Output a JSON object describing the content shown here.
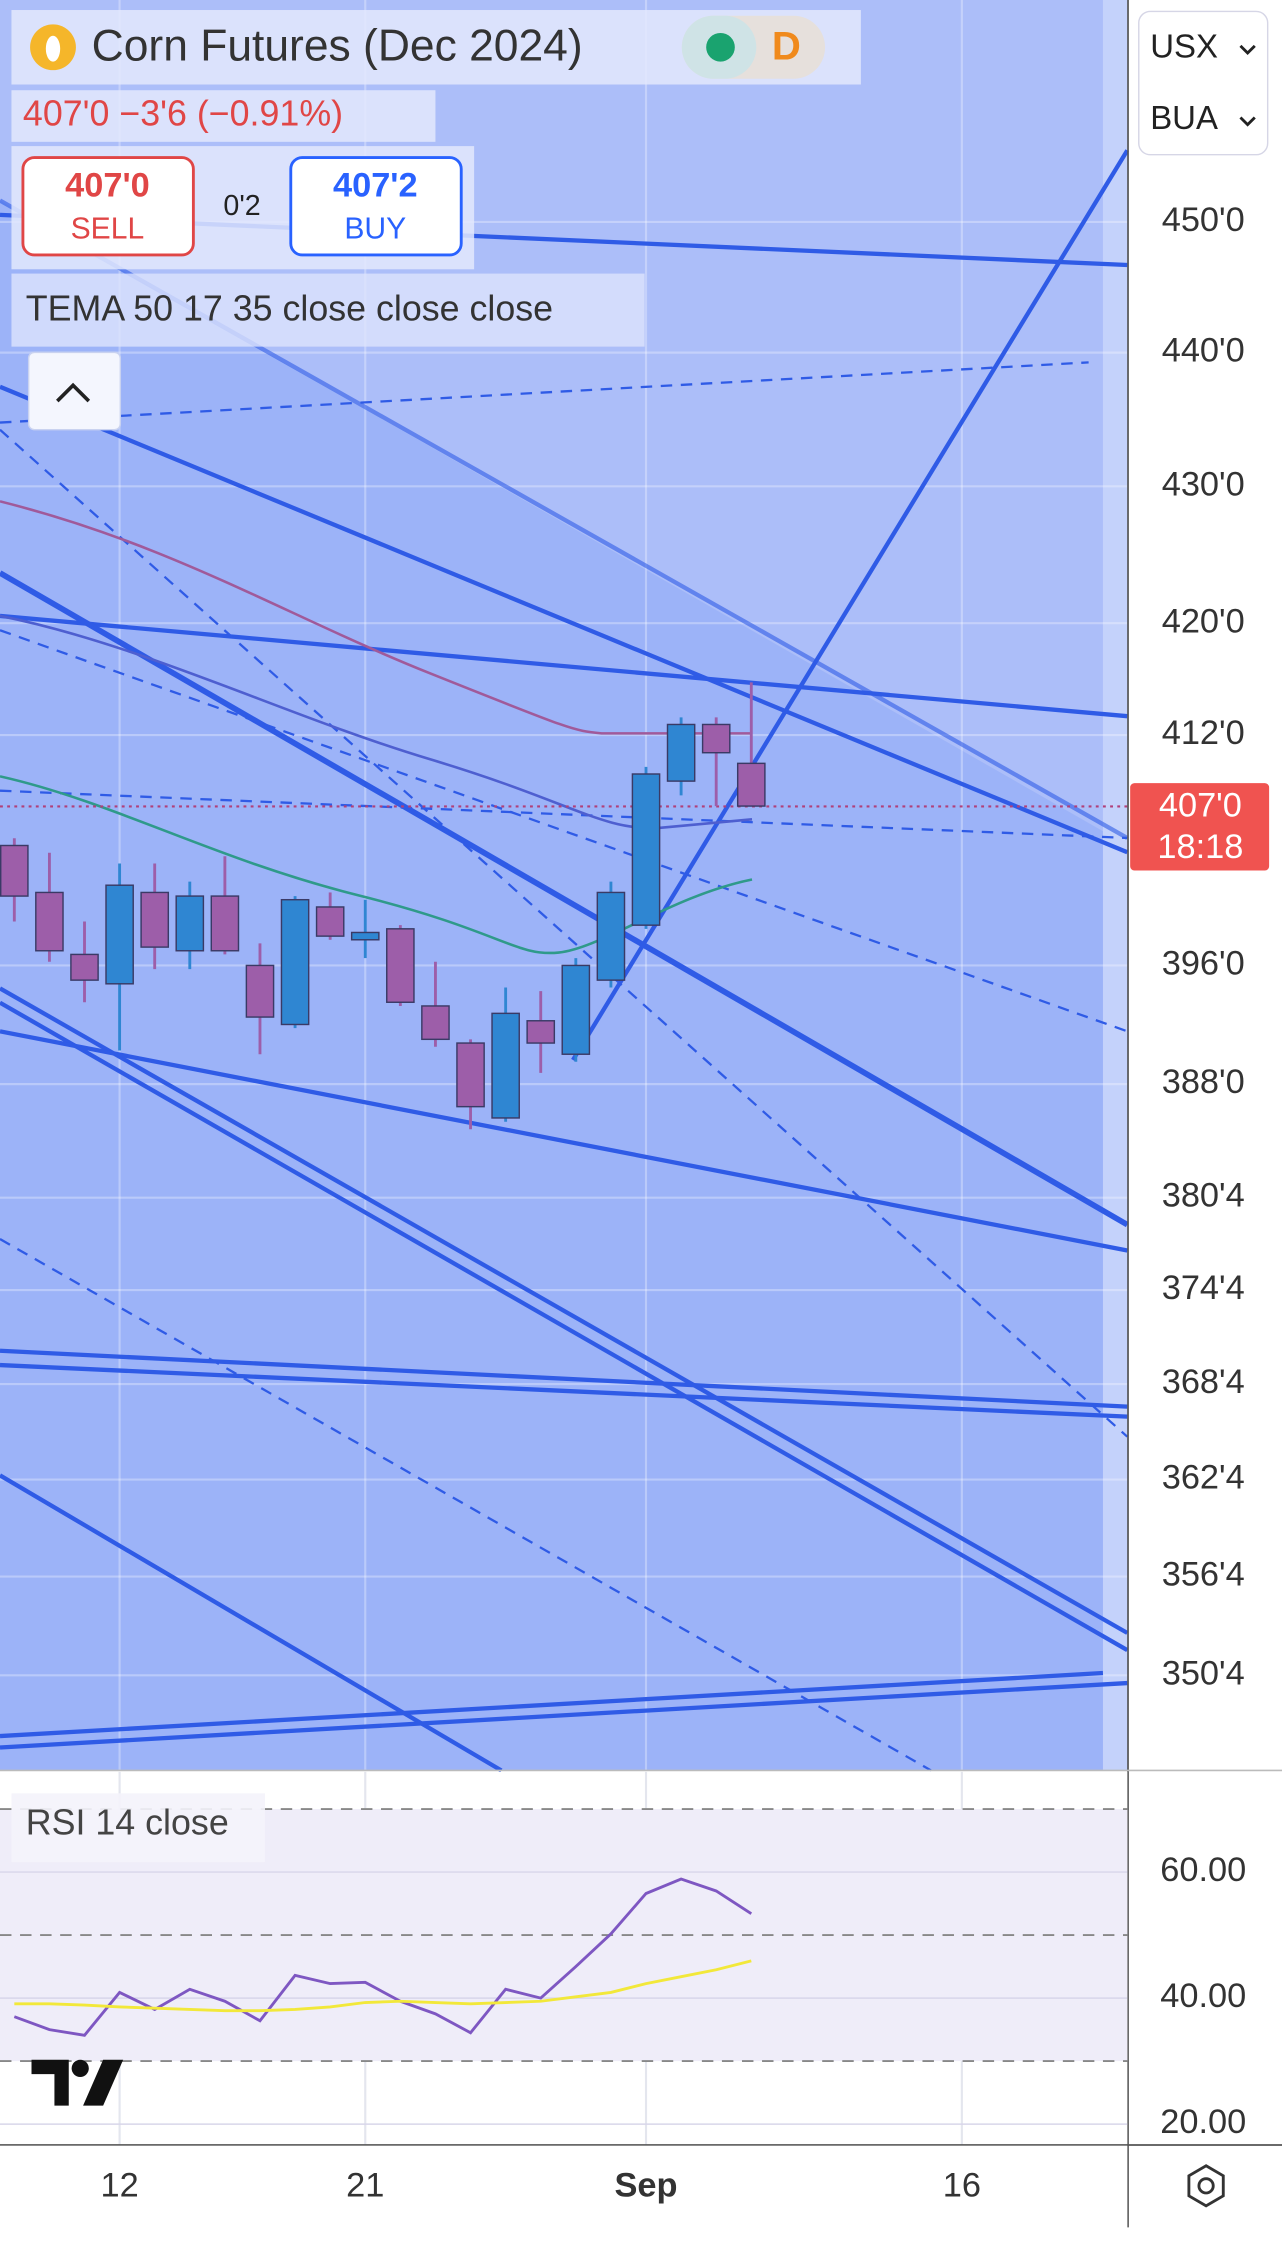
{
  "header": {
    "title": "Corn Futures (Dec 2024)",
    "interval": "D",
    "quote": "407'0 −3'6 (−0.91%)",
    "sell": {
      "price": "407'0",
      "label": "SELL"
    },
    "spread": "0'2",
    "buy": {
      "price": "407'2",
      "label": "BUY"
    },
    "indicator": "TEMA 50 17 35 close close close",
    "currency": "USX",
    "unit": "BUA"
  },
  "chart_data": [
    {
      "type": "candlestick",
      "log": true,
      "grid": true,
      "categories": [
        null,
        null,
        null,
        "12",
        null,
        null,
        null,
        null,
        null,
        null,
        "21",
        null,
        null,
        null,
        null,
        null,
        null,
        null,
        "Sep",
        null,
        null,
        null,
        null,
        null,
        null,
        null,
        null,
        "16",
        null,
        null,
        null,
        null
      ],
      "open": [
        404.25,
        401,
        396.75,
        394.75,
        401,
        397,
        400.75,
        396,
        392,
        400,
        397.75,
        398.5,
        393.25,
        390.75,
        385.75,
        392.25,
        390,
        395,
        398.75,
        408.75,
        412.75,
        410,
        null,
        null,
        null,
        null,
        null,
        null,
        null,
        null,
        null,
        null
      ],
      "high": [
        404.75,
        403.75,
        399,
        403,
        403,
        401.75,
        403.5,
        397.5,
        400.75,
        401,
        400.5,
        398.75,
        396.25,
        391,
        394.5,
        394.25,
        396.5,
        401.75,
        409.75,
        413.25,
        413.25,
        415.75,
        null,
        null,
        null,
        null,
        null,
        null,
        null,
        null,
        null,
        null
      ],
      "low": [
        399,
        396.25,
        393.5,
        390.25,
        395.75,
        395.75,
        396.75,
        390,
        391.75,
        397.75,
        396.5,
        393.25,
        390.5,
        385,
        385.5,
        388.75,
        389.5,
        394.5,
        398.5,
        407.75,
        407,
        407,
        null,
        null,
        null,
        null,
        null,
        null,
        null,
        null,
        null,
        null
      ],
      "close": [
        400.75,
        397,
        395,
        401.5,
        397.25,
        400.75,
        397,
        392.5,
        400.5,
        398,
        398.25,
        393.5,
        391,
        386.5,
        392.75,
        390.75,
        396,
        401,
        409.25,
        412.75,
        410.75,
        407,
        null,
        null,
        null,
        null,
        null,
        null,
        null,
        null,
        null,
        null
      ],
      "up_color": "#2f86d2",
      "down_color": "#9d5ea9",
      "ylim": [
        344.9,
        467.5
      ],
      "yticks": [
        {
          "value": 450,
          "label": "450'0"
        },
        {
          "value": 440,
          "label": "440'0"
        },
        {
          "value": 430,
          "label": "430'0"
        },
        {
          "value": 420,
          "label": "420'0"
        },
        {
          "value": 412,
          "label": "412'0"
        },
        {
          "value": 396,
          "label": "396'0"
        },
        {
          "value": 388,
          "label": "388'0"
        },
        {
          "value": 380.5,
          "label": "380'4"
        },
        {
          "value": 374.5,
          "label": "374'4"
        },
        {
          "value": 368.5,
          "label": "368'4"
        },
        {
          "value": 362.5,
          "label": "362'4"
        },
        {
          "value": 356.5,
          "label": "356'4"
        },
        {
          "value": 350.5,
          "label": "350'4"
        }
      ],
      "last_label": "407'0",
      "countdown": "18:18"
    },
    {
      "type": "line",
      "title": "RSI 14 close",
      "series": [
        {
          "color": "#7e57c2",
          "values": [
            37.05,
            35,
            34.1,
            40.9,
            38.2,
            41.4,
            39.5,
            36.4,
            43.6,
            42.3,
            42.5,
            39.5,
            37.5,
            34.5,
            41.4,
            40,
            45,
            50.2,
            56.6,
            58.9,
            57,
            53.4,
            null,
            null,
            null,
            null,
            null,
            null,
            null,
            null,
            null,
            null
          ]
        },
        {
          "color": "#f2e83a",
          "values": [
            39.1,
            39.1,
            38.9,
            38.6,
            38.4,
            38.2,
            38,
            38,
            38.2,
            38.6,
            39.3,
            39.5,
            39.3,
            39.1,
            39.3,
            39.5,
            40.2,
            40.9,
            42.3,
            43.4,
            44.5,
            45.9,
            null,
            null,
            null,
            null,
            null,
            null,
            null,
            null,
            null,
            null
          ]
        }
      ],
      "levels": [
        70,
        50,
        30
      ],
      "ylim": [
        16.8,
        75.9
      ],
      "yticks": [
        {
          "value": 60,
          "label": "60.00"
        },
        {
          "value": 40,
          "label": "40.00"
        },
        {
          "value": 20,
          "label": "20.00"
        }
      ]
    }
  ]
}
